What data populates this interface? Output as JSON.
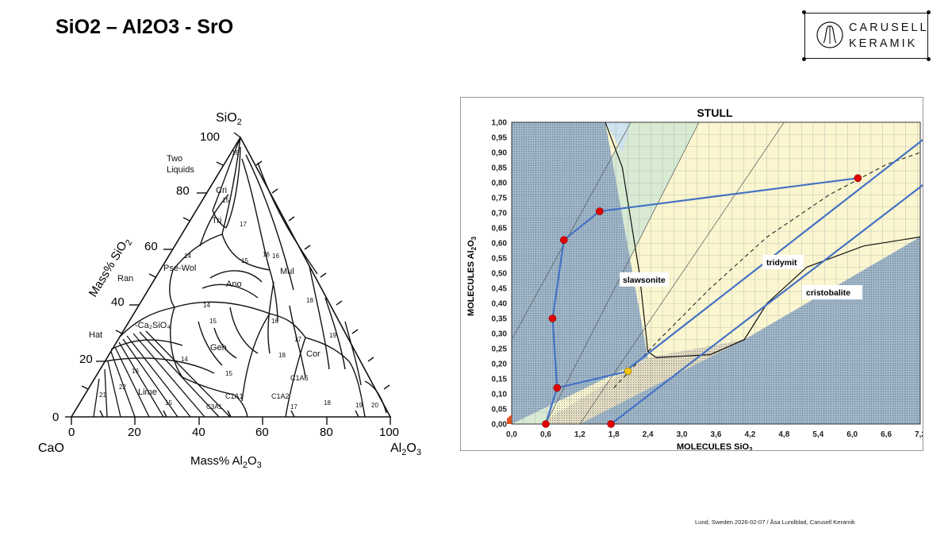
{
  "slide": {
    "title": "SiO2 – Al2O3 - SrO",
    "footer": "Lund, Sweden 2026-02-07 / Åsa Lundblad, Carusell Keramik"
  },
  "logo": {
    "line1": "CARUSELL",
    "line2": "KERAMIK"
  },
  "ternary": {
    "apex_top": "SiO",
    "apex_top_sub": "2",
    "apex_left": "CaO",
    "apex_right": "Al",
    "apex_right_sub": "2",
    "apex_right_tail": "O",
    "apex_right_sub2": "3",
    "left_axis_label": "Mass% SiO",
    "left_axis_label_sub": "2",
    "bottom_axis_label": "Mass% Al",
    "bottom_axis_label_sub": "2",
    "bottom_axis_label_tail": "O",
    "bottom_axis_label_sub2": "3",
    "left_ticks": [
      "100",
      "80",
      "60",
      "40",
      "20",
      "0"
    ],
    "bottom_ticks": [
      "0",
      "20",
      "40",
      "60",
      "80",
      "100"
    ],
    "phase_labels": {
      "two_liquids_1": "Two",
      "two_liquids_2": "Liquids",
      "cri": "Cri",
      "tri": "Tri",
      "pse_wol": "Pse-Wol",
      "ran": "Ran",
      "ano": "Ano",
      "mul": "Mul",
      "ca2sio4": "-Ca₂SiO₄",
      "hat": "Hat",
      "geh": "Geh",
      "cor": "Cor",
      "lime": "Lime",
      "c1a6": "C1A6",
      "c1a2": "C1A2",
      "c1a1": "C1A1",
      "c3a1": "C3A1"
    },
    "isotherms": [
      "16",
      "15",
      "17",
      "14",
      "15",
      "16",
      "16",
      "18",
      "17",
      "19",
      "14",
      "15",
      "18",
      "16",
      "15",
      "17",
      "18",
      "19",
      "20",
      "21",
      "22",
      "16",
      "15",
      "14"
    ]
  },
  "stull": {
    "title": "STULL",
    "y_axis_label": "MOLECULES  Al",
    "y_axis_label_sub": "2",
    "y_axis_label_tail": "O",
    "y_axis_label_sub2": "3",
    "x_axis_label": "MOLECULES  SiO",
    "x_axis_label_sub": "2",
    "y_ticks": [
      "1,00",
      "0,95",
      "0,90",
      "0,85",
      "0,80",
      "0,75",
      "0,70",
      "0,65",
      "0,60",
      "0,55",
      "0,50",
      "0,45",
      "0,40",
      "0,35",
      "0,30",
      "0,25",
      "0,20",
      "0,15",
      "0,10",
      "0,05",
      "0,00"
    ],
    "x_ticks": [
      "0,0",
      "0,6",
      "1,2",
      "1,8",
      "2,4",
      "3,0",
      "3,6",
      "4,2",
      "4,8",
      "5,4",
      "6,0",
      "6,6",
      "7,2"
    ],
    "region_labels": {
      "slawsonite": "slawsonite",
      "tridymit": "tridymit",
      "cristobalite": "cristobalite"
    },
    "colors": {
      "blue_line": "#4472c4",
      "red_point": "#e00000",
      "yellow_point": "#f5c518",
      "matte_blue": "#9fb6c9",
      "light_blue": "#cfe3ee",
      "light_green": "#d9ead3",
      "light_yellow": "#fbf6cf",
      "tan": "#e6dcc1"
    },
    "chart_data": {
      "type": "scatter",
      "xlim": [
        0,
        7.2
      ],
      "ylim": [
        0,
        1.0
      ],
      "red_points": [
        {
          "x": 0.6,
          "y": 0.0
        },
        {
          "x": 1.75,
          "y": 0.0
        },
        {
          "x": 0.8,
          "y": 0.12
        },
        {
          "x": 0.72,
          "y": 0.35
        },
        {
          "x": 0.92,
          "y": 0.61
        },
        {
          "x": 1.55,
          "y": 0.705
        },
        {
          "x": 6.1,
          "y": 0.815
        }
      ],
      "yellow_points": [
        {
          "x": 2.05,
          "y": 0.175
        }
      ],
      "polyline": [
        {
          "x": 0.6,
          "y": 0.0
        },
        {
          "x": 0.8,
          "y": 0.12
        },
        {
          "x": 0.72,
          "y": 0.35
        },
        {
          "x": 0.92,
          "y": 0.61
        },
        {
          "x": 1.55,
          "y": 0.705
        },
        {
          "x": 6.1,
          "y": 0.815
        }
      ],
      "polyline2": [
        {
          "x": 0.8,
          "y": 0.12
        },
        {
          "x": 2.05,
          "y": 0.175
        }
      ],
      "lines": [
        [
          {
            "x": 1.75,
            "y": 0.0
          },
          {
            "x": 7.3,
            "y": 0.8
          }
        ],
        [
          {
            "x": 2.0,
            "y": 0.175
          },
          {
            "x": 7.3,
            "y": 0.95
          }
        ]
      ]
    }
  }
}
